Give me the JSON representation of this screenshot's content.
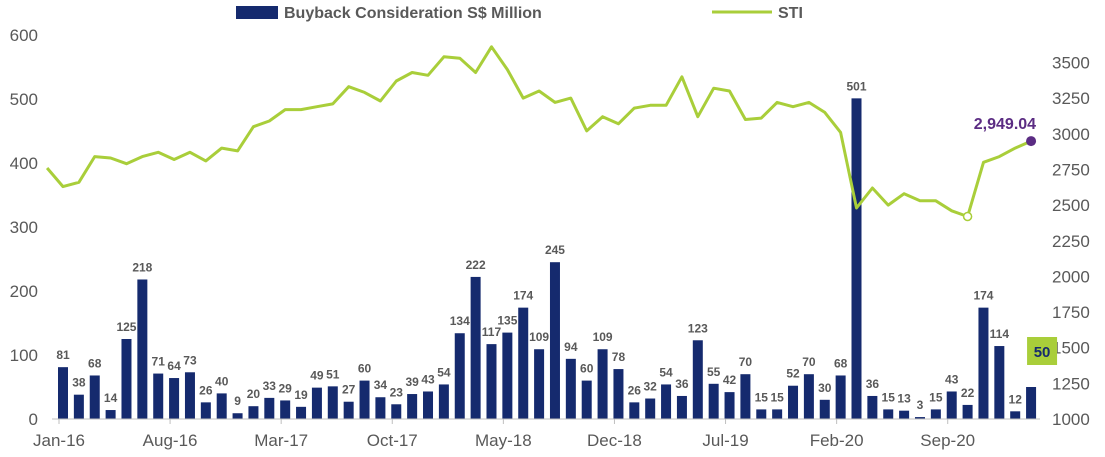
{
  "chart_data": {
    "type": "bar+line",
    "legend": {
      "placement": "top",
      "items": [
        {
          "label": "Buyback Consideration S$ Million",
          "kind": "bar",
          "color": "#152A6E"
        },
        {
          "label": "STI",
          "kind": "line",
          "color": "#A9CE3A"
        }
      ]
    },
    "x_tick_labels": [
      "Jan-16",
      "Aug-16",
      "Mar-17",
      "Oct-17",
      "May-18",
      "Dec-18",
      "Jul-19",
      "Feb-20",
      "Sep-20"
    ],
    "x_tick_month_index": [
      0,
      7,
      14,
      21,
      28,
      35,
      42,
      49,
      56
    ],
    "y_left": {
      "min": 0,
      "max": 600,
      "ticks": [
        0,
        100,
        200,
        300,
        400,
        500,
        600
      ]
    },
    "y_right": {
      "min": 1000,
      "max": 3500,
      "ticks": [
        1000,
        1250,
        1500,
        1750,
        2000,
        2250,
        2500,
        2750,
        3000,
        3250,
        3500
      ]
    },
    "series": [
      {
        "name": "Buyback Consideration S$ Million",
        "type": "bar",
        "axis": "left",
        "color": "#152A6E",
        "values": [
          81,
          38,
          68,
          14,
          125,
          218,
          71,
          64,
          73,
          26,
          40,
          9,
          20,
          33,
          29,
          19,
          49,
          51,
          27,
          60,
          34,
          23,
          39,
          43,
          54,
          134,
          222,
          117,
          135,
          174,
          109,
          245,
          94,
          60,
          109,
          78,
          26,
          32,
          54,
          36,
          123,
          55,
          42,
          70,
          15,
          15,
          52,
          70,
          30,
          68,
          501,
          36,
          15,
          13,
          3,
          15,
          43,
          22,
          174,
          114,
          12,
          50
        ],
        "labels": [
          "81",
          "38",
          "68",
          "14",
          "125",
          "218",
          "71",
          "64",
          "73",
          "26",
          "40",
          "9",
          "20",
          "33",
          "29",
          "19",
          "49",
          "51",
          "27",
          "60",
          "34",
          "23",
          "39",
          "43",
          "54",
          "134",
          "222",
          "117",
          "135",
          "174",
          "109",
          "245",
          "94",
          "60",
          "109",
          "78",
          "26",
          "32",
          "54",
          "36",
          "123",
          "55",
          "42",
          "70",
          "15",
          "15",
          "52",
          "70",
          "30",
          "68",
          "501",
          "36",
          "15",
          "13",
          "3",
          "15",
          "43",
          "22",
          "174",
          "114",
          "12",
          "50"
        ]
      },
      {
        "name": "STI",
        "type": "line",
        "axis": "right",
        "color": "#A9CE3A",
        "values": [
          2760,
          2630,
          2660,
          2840,
          2830,
          2790,
          2840,
          2870,
          2820,
          2870,
          2810,
          2900,
          2880,
          3050,
          3090,
          3170,
          3170,
          3190,
          3210,
          3330,
          3290,
          3230,
          3370,
          3430,
          3410,
          3540,
          3530,
          3430,
          3610,
          3450,
          3250,
          3300,
          3220,
          3250,
          3020,
          3120,
          3070,
          3180,
          3200,
          3200,
          3400,
          3120,
          3320,
          3300,
          3100,
          3110,
          3220,
          3190,
          3220,
          3150,
          3010,
          2480,
          2620,
          2500,
          2580,
          2530,
          2530,
          2460,
          2420,
          2800,
          2840,
          2900,
          2949.04
        ],
        "start_month_offset": -1
      }
    ],
    "annotations": {
      "sti_last": "2,949.04",
      "sti_last_color": "#5B2C83",
      "highlight_bar_index": 59,
      "highlight_bar_label_color": "#152A6E",
      "last_bar_label_bg": "#A9CE3A",
      "sti_min_marker_index": 58
    }
  }
}
